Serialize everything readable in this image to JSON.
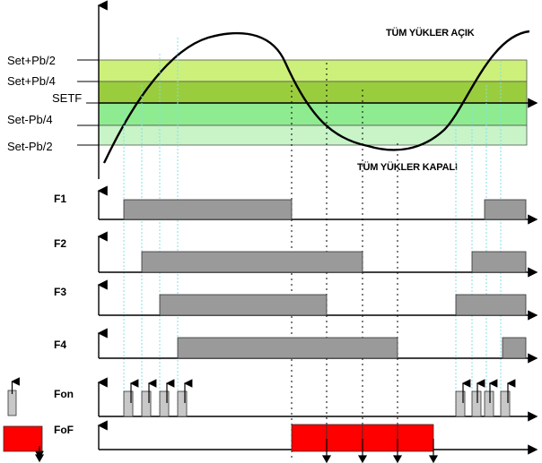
{
  "band_labels": {
    "set_plus_pb2": "Set+Pb/2",
    "set_plus_pb4": "Set+Pb/4",
    "setf": "SETF",
    "set_minus_pb4": "Set-Pb/4",
    "set_minus_pb2": "Set-Pb/2"
  },
  "annotations": {
    "all_loads_on": "TÜM YÜKLER AÇIK",
    "all_loads_off": "TÜM YÜKLER KAPALI"
  },
  "rows": {
    "f1": "F1",
    "f2": "F2",
    "f3": "F3",
    "f4": "F4",
    "fon": "Fon",
    "fof": "FoF"
  },
  "colors": {
    "band_top": "#ccf07a",
    "band_setf": "#9acd3e",
    "band_mid": "#8feb90",
    "band_low": "#c8f4c8",
    "bar_fill": "#9a9a9a",
    "fof_fill": "#ff0000",
    "guide_cyan": "#7fe0ea"
  }
}
